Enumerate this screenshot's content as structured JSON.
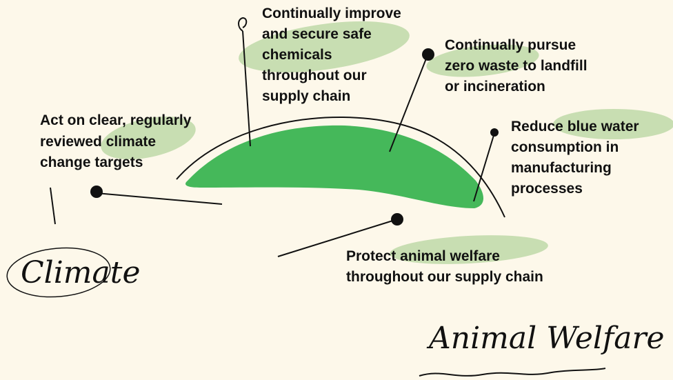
{
  "labels": [
    {
      "lines": [
        "Continually improve",
        "and secure safe",
        "chemicals",
        "throughout our",
        "supply chain"
      ]
    },
    {
      "lines": [
        "Continually pursue",
        "zero waste to landfill",
        "or incineration"
      ]
    },
    {
      "lines": [
        "Act on clear, regularly",
        "reviewed climate",
        "change targets"
      ]
    },
    {
      "lines": [
        "Reduce blue water",
        "consumption in",
        "manufacturing",
        "processes"
      ]
    },
    {
      "lines": [
        "Protect animal welfare",
        "throughout our supply chain"
      ]
    }
  ],
  "handwriting": [
    "Climate",
    "Animal Welfare"
  ]
}
